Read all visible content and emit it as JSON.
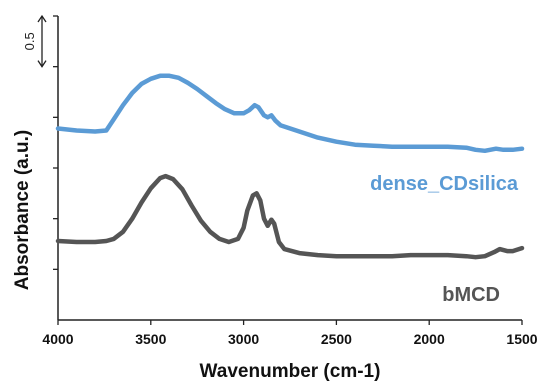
{
  "chart_data": {
    "type": "line",
    "title": "",
    "xlabel": "Wavenumber (cm-1)",
    "ylabel": "Absorbance (a.u.)",
    "xlim": [
      4000,
      1500
    ],
    "x_reversed": true,
    "x_ticks": [
      "4000",
      "3500",
      "3000",
      "2500",
      "2000",
      "1500"
    ],
    "ylim": [
      0,
      3.0
    ],
    "y_tick_labels_shown": false,
    "grid": false,
    "scale_bar": {
      "label": "0.5",
      "value": 0.5
    },
    "series": [
      {
        "name": "dense_CDsilica",
        "color": "#5b9bd5",
        "points": [
          [
            4000,
            1.89
          ],
          [
            3900,
            1.87
          ],
          [
            3800,
            1.86
          ],
          [
            3740,
            1.87
          ],
          [
            3700,
            1.98
          ],
          [
            3650,
            2.12
          ],
          [
            3600,
            2.24
          ],
          [
            3550,
            2.33
          ],
          [
            3500,
            2.38
          ],
          [
            3450,
            2.41
          ],
          [
            3400,
            2.41
          ],
          [
            3350,
            2.39
          ],
          [
            3300,
            2.34
          ],
          [
            3250,
            2.28
          ],
          [
            3200,
            2.21
          ],
          [
            3150,
            2.14
          ],
          [
            3100,
            2.08
          ],
          [
            3050,
            2.04
          ],
          [
            3000,
            2.04
          ],
          [
            2970,
            2.07
          ],
          [
            2940,
            2.12
          ],
          [
            2920,
            2.1
          ],
          [
            2890,
            2.02
          ],
          [
            2870,
            2.0
          ],
          [
            2850,
            2.02
          ],
          [
            2830,
            1.97
          ],
          [
            2800,
            1.92
          ],
          [
            2700,
            1.86
          ],
          [
            2600,
            1.8
          ],
          [
            2500,
            1.76
          ],
          [
            2400,
            1.73
          ],
          [
            2300,
            1.72
          ],
          [
            2200,
            1.71
          ],
          [
            2100,
            1.71
          ],
          [
            2000,
            1.71
          ],
          [
            1900,
            1.71
          ],
          [
            1800,
            1.7
          ],
          [
            1750,
            1.68
          ],
          [
            1700,
            1.67
          ],
          [
            1640,
            1.69
          ],
          [
            1600,
            1.68
          ],
          [
            1550,
            1.68
          ],
          [
            1500,
            1.69
          ]
        ]
      },
      {
        "name": "bMCD",
        "color": "#555555",
        "points": [
          [
            4000,
            0.78
          ],
          [
            3900,
            0.77
          ],
          [
            3800,
            0.77
          ],
          [
            3740,
            0.78
          ],
          [
            3700,
            0.8
          ],
          [
            3650,
            0.87
          ],
          [
            3600,
            1.0
          ],
          [
            3550,
            1.16
          ],
          [
            3500,
            1.3
          ],
          [
            3450,
            1.4
          ],
          [
            3420,
            1.42
          ],
          [
            3380,
            1.39
          ],
          [
            3330,
            1.29
          ],
          [
            3280,
            1.13
          ],
          [
            3230,
            0.98
          ],
          [
            3180,
            0.87
          ],
          [
            3130,
            0.8
          ],
          [
            3080,
            0.77
          ],
          [
            3030,
            0.8
          ],
          [
            3000,
            0.91
          ],
          [
            2980,
            1.08
          ],
          [
            2950,
            1.23
          ],
          [
            2930,
            1.25
          ],
          [
            2910,
            1.18
          ],
          [
            2890,
            1.0
          ],
          [
            2870,
            0.93
          ],
          [
            2850,
            0.99
          ],
          [
            2835,
            0.95
          ],
          [
            2810,
            0.77
          ],
          [
            2780,
            0.7
          ],
          [
            2700,
            0.66
          ],
          [
            2600,
            0.64
          ],
          [
            2500,
            0.63
          ],
          [
            2400,
            0.63
          ],
          [
            2300,
            0.63
          ],
          [
            2200,
            0.63
          ],
          [
            2100,
            0.64
          ],
          [
            2000,
            0.64
          ],
          [
            1900,
            0.64
          ],
          [
            1800,
            0.63
          ],
          [
            1750,
            0.62
          ],
          [
            1700,
            0.63
          ],
          [
            1650,
            0.67
          ],
          [
            1620,
            0.7
          ],
          [
            1580,
            0.68
          ],
          [
            1550,
            0.68
          ],
          [
            1500,
            0.71
          ]
        ]
      }
    ]
  }
}
